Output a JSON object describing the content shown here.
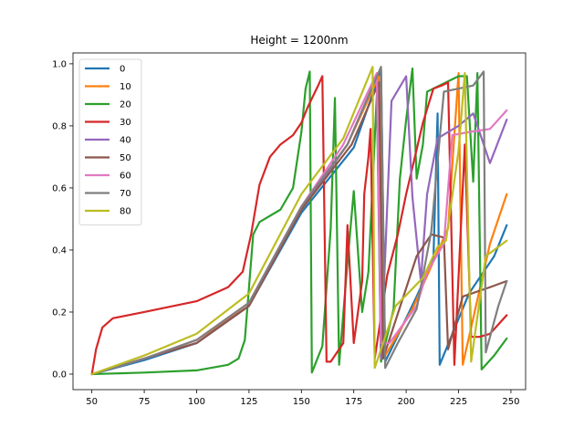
{
  "chart_data": {
    "type": "line",
    "title": "Height = 1200nm",
    "xlabel": "",
    "ylabel": "",
    "xlim": [
      41,
      257
    ],
    "ylim": [
      -0.05,
      1.035
    ],
    "x_ticks": [
      50,
      75,
      100,
      125,
      150,
      175,
      200,
      225,
      250
    ],
    "x_tick_labels": [
      "50",
      "75",
      "100",
      "125",
      "150",
      "175",
      "200",
      "225",
      "250"
    ],
    "y_ticks": [
      0.0,
      0.2,
      0.4,
      0.6,
      0.8,
      1.0
    ],
    "y_tick_labels": [
      "0.0",
      "0.2",
      "0.4",
      "0.6",
      "0.8",
      "1.0"
    ],
    "grid": false,
    "legend_position": "top-left",
    "series": [
      {
        "name": "0",
        "color": "#1f77b4",
        "points": [
          [
            50,
            0
          ],
          [
            75,
            0.045
          ],
          [
            100,
            0.1
          ],
          [
            125,
            0.22
          ],
          [
            150,
            0.52
          ],
          [
            175,
            0.73
          ],
          [
            188,
            0.98
          ],
          [
            190,
            0.04
          ],
          [
            205,
            0.25
          ],
          [
            213,
            0.37
          ],
          [
            215,
            0.84
          ],
          [
            216,
            0.03
          ],
          [
            230,
            0.26
          ],
          [
            242,
            0.38
          ],
          [
            248,
            0.48
          ]
        ]
      },
      {
        "name": "10",
        "color": "#ff7f0e",
        "points": [
          [
            50,
            0
          ],
          [
            75,
            0.05
          ],
          [
            100,
            0.11
          ],
          [
            125,
            0.22
          ],
          [
            150,
            0.53
          ],
          [
            172,
            0.74
          ],
          [
            187,
            0.96
          ],
          [
            190,
            0.06
          ],
          [
            203,
            0.21
          ],
          [
            220,
            0.47
          ],
          [
            225,
            0.97
          ],
          [
            227,
            0.03
          ],
          [
            240,
            0.42
          ],
          [
            248,
            0.58
          ]
        ]
      },
      {
        "name": "20",
        "color": "#2ca02c",
        "points": [
          [
            50,
            0
          ],
          [
            75,
            0.005
          ],
          [
            100,
            0.012
          ],
          [
            115,
            0.03
          ],
          [
            120,
            0.05
          ],
          [
            123,
            0.11
          ],
          [
            125,
            0.28
          ],
          [
            127,
            0.45
          ],
          [
            130,
            0.49
          ],
          [
            140,
            0.53
          ],
          [
            146,
            0.6
          ],
          [
            150,
            0.78
          ],
          [
            152,
            0.92
          ],
          [
            154,
            0.975
          ],
          [
            155,
            0.005
          ],
          [
            160,
            0.09
          ],
          [
            164,
            0.47
          ],
          [
            166,
            0.89
          ],
          [
            168,
            0.03
          ],
          [
            172,
            0.36
          ],
          [
            175,
            0.59
          ],
          [
            179,
            0.2
          ],
          [
            182,
            0.33
          ],
          [
            186,
            0.9
          ],
          [
            188,
            0.04
          ],
          [
            194,
            0.21
          ],
          [
            197,
            0.63
          ],
          [
            200,
            0.82
          ],
          [
            203,
            0.985
          ],
          [
            205,
            0.63
          ],
          [
            208,
            0.74
          ],
          [
            210,
            0.91
          ],
          [
            225,
            0.96
          ],
          [
            229,
            0.96
          ],
          [
            232,
            0.62
          ],
          [
            234,
            0.97
          ],
          [
            236,
            0.015
          ],
          [
            242,
            0.06
          ],
          [
            248,
            0.115
          ]
        ]
      },
      {
        "name": "30",
        "color": "#d62728",
        "points": [
          [
            50,
            0
          ],
          [
            52,
            0.08
          ],
          [
            55,
            0.15
          ],
          [
            60,
            0.18
          ],
          [
            75,
            0.2
          ],
          [
            100,
            0.235
          ],
          [
            115,
            0.28
          ],
          [
            122,
            0.33
          ],
          [
            126,
            0.45
          ],
          [
            130,
            0.61
          ],
          [
            135,
            0.7
          ],
          [
            140,
            0.74
          ],
          [
            146,
            0.77
          ],
          [
            150,
            0.81
          ],
          [
            153,
            0.86
          ],
          [
            158,
            0.93
          ],
          [
            160,
            0.96
          ],
          [
            162,
            0.04
          ],
          [
            164,
            0.04
          ],
          [
            170,
            0.1
          ],
          [
            172,
            0.48
          ],
          [
            175,
            0.1
          ],
          [
            179,
            0.3
          ],
          [
            180,
            0.58
          ],
          [
            182,
            0.7
          ],
          [
            183,
            0.79
          ],
          [
            185,
            0.05
          ],
          [
            191,
            0.32
          ],
          [
            196,
            0.45
          ],
          [
            200,
            0.58
          ],
          [
            208,
            0.81
          ],
          [
            213,
            0.92
          ],
          [
            217,
            0.93
          ],
          [
            220,
            0.94
          ],
          [
            223,
            0.03
          ],
          [
            228,
            0.74
          ],
          [
            231,
            0.12
          ],
          [
            235,
            0.12
          ],
          [
            240,
            0.13
          ],
          [
            248,
            0.19
          ]
        ]
      },
      {
        "name": "40",
        "color": "#9467bd",
        "points": [
          [
            50,
            0
          ],
          [
            75,
            0.05
          ],
          [
            100,
            0.1
          ],
          [
            125,
            0.22
          ],
          [
            150,
            0.53
          ],
          [
            172,
            0.74
          ],
          [
            186,
            0.96
          ],
          [
            188,
            0.05
          ],
          [
            193,
            0.88
          ],
          [
            200,
            0.96
          ],
          [
            203,
            0.57
          ],
          [
            207,
            0.3
          ],
          [
            210,
            0.58
          ],
          [
            215,
            0.76
          ],
          [
            225,
            0.8
          ],
          [
            232,
            0.84
          ],
          [
            240,
            0.68
          ],
          [
            248,
            0.82
          ]
        ]
      },
      {
        "name": "50",
        "color": "#8c564b",
        "points": [
          [
            50,
            0
          ],
          [
            75,
            0.05
          ],
          [
            100,
            0.1
          ],
          [
            125,
            0.22
          ],
          [
            150,
            0.53
          ],
          [
            174,
            0.74
          ],
          [
            187,
            0.94
          ],
          [
            189,
            0.05
          ],
          [
            205,
            0.38
          ],
          [
            212,
            0.45
          ],
          [
            218,
            0.44
          ],
          [
            220,
            0.08
          ],
          [
            227,
            0.25
          ],
          [
            240,
            0.28
          ],
          [
            248,
            0.3
          ]
        ]
      },
      {
        "name": "60",
        "color": "#e377c2",
        "points": [
          [
            50,
            0
          ],
          [
            75,
            0.05
          ],
          [
            100,
            0.11
          ],
          [
            125,
            0.23
          ],
          [
            150,
            0.54
          ],
          [
            170,
            0.74
          ],
          [
            186,
            0.97
          ],
          [
            188,
            0.1
          ],
          [
            192,
            0.1
          ],
          [
            205,
            0.22
          ],
          [
            210,
            0.33
          ],
          [
            218,
            0.42
          ],
          [
            222,
            0.77
          ],
          [
            230,
            0.78
          ],
          [
            240,
            0.79
          ],
          [
            248,
            0.85
          ]
        ]
      },
      {
        "name": "70",
        "color": "#7f7f7f",
        "points": [
          [
            50,
            0
          ],
          [
            75,
            0.05
          ],
          [
            100,
            0.11
          ],
          [
            125,
            0.23
          ],
          [
            150,
            0.54
          ],
          [
            172,
            0.74
          ],
          [
            188,
            0.99
          ],
          [
            190,
            0.02
          ],
          [
            196,
            0.1
          ],
          [
            205,
            0.21
          ],
          [
            212,
            0.46
          ],
          [
            218,
            0.91
          ],
          [
            225,
            0.92
          ],
          [
            232,
            0.93
          ],
          [
            237,
            0.975
          ],
          [
            238,
            0.07
          ],
          [
            244,
            0.22
          ],
          [
            248,
            0.3
          ]
        ]
      },
      {
        "name": "80",
        "color": "#bcbd22",
        "points": [
          [
            50,
            0
          ],
          [
            75,
            0.06
          ],
          [
            100,
            0.13
          ],
          [
            125,
            0.26
          ],
          [
            150,
            0.58
          ],
          [
            170,
            0.76
          ],
          [
            184,
            0.99
          ],
          [
            185,
            0.02
          ],
          [
            195,
            0.22
          ],
          [
            208,
            0.31
          ],
          [
            215,
            0.41
          ],
          [
            219,
            0.43
          ],
          [
            225,
            0.72
          ],
          [
            228,
            0.97
          ],
          [
            231,
            0.04
          ],
          [
            238,
            0.38
          ],
          [
            248,
            0.43
          ]
        ]
      }
    ]
  }
}
